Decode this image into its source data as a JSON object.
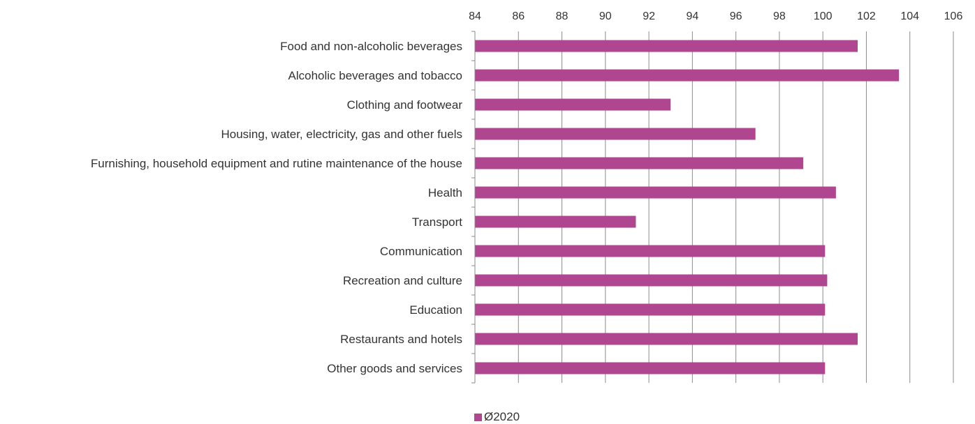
{
  "chart_data": {
    "type": "bar",
    "orientation": "horizontal",
    "categories": [
      "Food and non-alcoholic beverages",
      "Alcoholic beverages and tobacco",
      "Clothing and footwear",
      "Housing, water, electricity, gas and other fuels",
      "Furnishing, household equipment and rutine maintenance of the house",
      "Health",
      "Transport",
      "Communication",
      "Recreation and culture",
      "Education",
      "Restaurants and hotels",
      "Other goods and services"
    ],
    "series": [
      {
        "name": "Ø2020",
        "color": "#B04590",
        "values": [
          101.6,
          103.5,
          93.0,
          96.9,
          99.1,
          100.6,
          91.4,
          100.1,
          100.2,
          100.1,
          101.6,
          100.1
        ]
      }
    ],
    "xlim": [
      84,
      106
    ],
    "xticks": [
      "84",
      "86",
      "88",
      "90",
      "92",
      "94",
      "96",
      "98",
      "100",
      "102",
      "104",
      "106"
    ],
    "x_axis_position": "top",
    "grid": "vertical",
    "legend_position": "bottom-center"
  },
  "legend": {
    "label": "Ø2020"
  }
}
